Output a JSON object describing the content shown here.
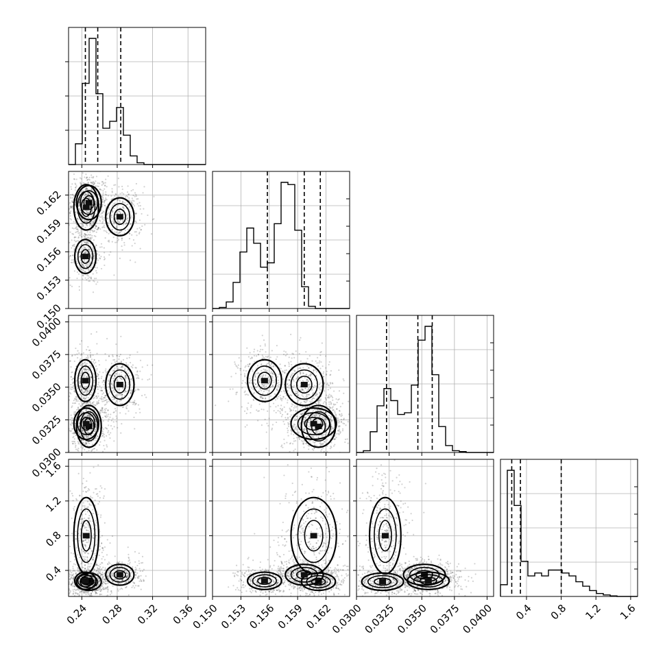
{
  "chart_data": {
    "type": "corner",
    "parameters": [
      {
        "key": "p1",
        "range": [
          0.225,
          0.38
        ],
        "ticks": [
          0.24,
          0.28,
          0.32,
          0.36
        ],
        "tick_labels": [
          "0.24",
          "0.28",
          "0.32",
          "0.36"
        ],
        "quantiles": [
          0.244,
          0.258,
          0.284
        ],
        "hist": {
          "edges_start": 0.225,
          "bin_width": 0.00775,
          "counts": [
            0,
            0.12,
            0.47,
            0.73,
            0.41,
            0.21,
            0.25,
            0.33,
            0.17,
            0.05,
            0.01,
            0,
            0,
            0,
            0,
            0,
            0,
            0,
            0,
            0
          ]
        }
      },
      {
        "key": "p2",
        "range": [
          0.15,
          0.1645
        ],
        "ticks": [
          0.15,
          0.153,
          0.156,
          0.159,
          0.162
        ],
        "tick_labels": [
          "0.150",
          "0.153",
          "0.156",
          "0.159",
          "0.162"
        ],
        "quantiles": [
          0.1558,
          0.1597,
          0.1614
        ],
        "hist": {
          "edges_start": 0.15,
          "bin_width": 0.000725,
          "counts": [
            0,
            0.005,
            0.03,
            0.12,
            0.26,
            0.37,
            0.3,
            0.19,
            0.21,
            0.39,
            0.58,
            0.57,
            0.36,
            0.1,
            0.01,
            0,
            0,
            0,
            0,
            0
          ]
        }
      },
      {
        "key": "p3",
        "range": [
          0.03,
          0.0405
        ],
        "ticks": [
          0.03,
          0.0325,
          0.035,
          0.0375,
          0.04
        ],
        "tick_labels": [
          "0.0300",
          "0.0325",
          "0.0350",
          "0.0375",
          "0.0400"
        ],
        "quantiles": [
          0.0323,
          0.0347,
          0.0358
        ],
        "hist": {
          "edges_start": 0.03,
          "bin_width": 0.000525,
          "counts": [
            0,
            0.01,
            0.12,
            0.27,
            0.37,
            0.3,
            0.22,
            0.23,
            0.39,
            0.65,
            0.73,
            0.45,
            0.15,
            0.04,
            0.01,
            0.005,
            0,
            0,
            0,
            0
          ]
        }
      },
      {
        "key": "p4",
        "range": [
          0.1,
          1.68
        ],
        "ticks": [
          0.4,
          0.8,
          1.2,
          1.6
        ],
        "tick_labels": [
          "0.4",
          "0.8",
          "1.2",
          "1.6"
        ],
        "quantiles": [
          0.23,
          0.33,
          0.8
        ],
        "hist": {
          "edges_start": 0.1,
          "bin_width": 0.079,
          "counts": [
            0.04,
            0.43,
            0.31,
            0.12,
            0.07,
            0.08,
            0.07,
            0.09,
            0.09,
            0.08,
            0.07,
            0.05,
            0.035,
            0.02,
            0.01,
            0.005,
            0.002,
            0,
            0,
            0
          ]
        }
      }
    ],
    "mode_centers": [
      {
        "p1": 0.248,
        "p2": 0.1612,
        "p3": 0.032,
        "p4": 0.27,
        "s1": 0.007,
        "s2": 0.0009,
        "s3": 0.0008,
        "s4": 0.05
      },
      {
        "p1": 0.283,
        "p2": 0.1597,
        "p3": 0.0352,
        "p4": 0.35,
        "s1": 0.008,
        "s2": 0.001,
        "s3": 0.0008,
        "s4": 0.06
      },
      {
        "p1": 0.244,
        "p2": 0.1555,
        "p3": 0.0355,
        "p4": 0.28,
        "s1": 0.006,
        "s2": 0.0009,
        "s3": 0.0008,
        "s4": 0.05
      },
      {
        "p1": 0.245,
        "p2": 0.1607,
        "p3": 0.0322,
        "p4": 0.8,
        "s1": 0.007,
        "s2": 0.0012,
        "s3": 0.0006,
        "s4": 0.22
      }
    ],
    "grid": true
  }
}
